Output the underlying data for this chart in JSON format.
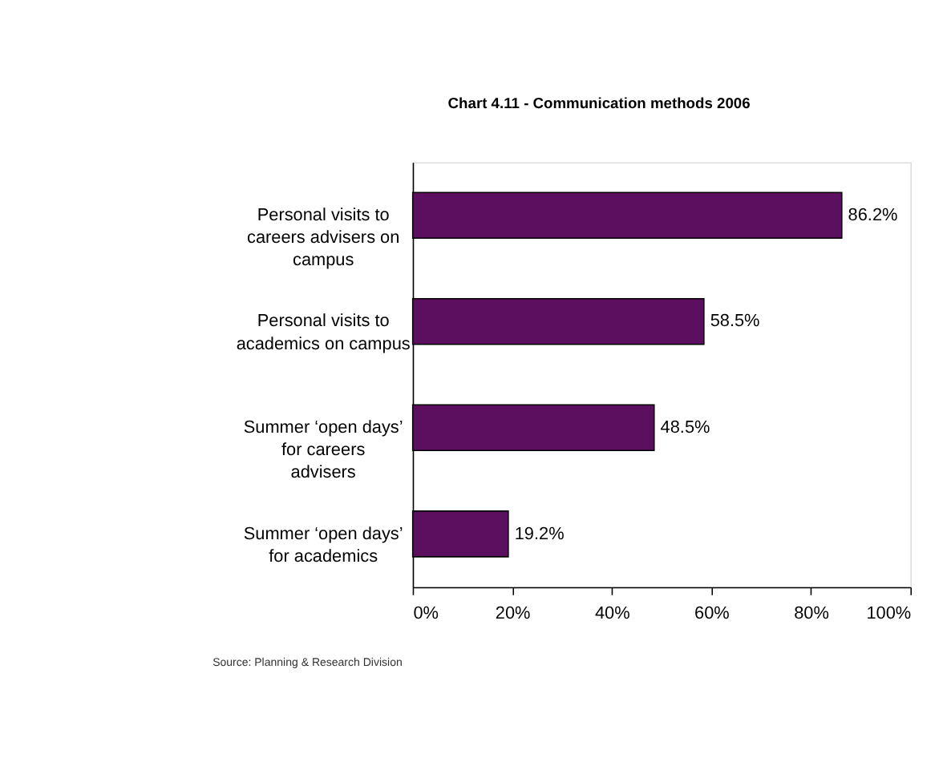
{
  "chart_data": {
    "type": "bar",
    "orientation": "horizontal",
    "title": "Chart 4.11 - Communication methods 2006",
    "categories": [
      "Personal visits to careers advisers on campus",
      "Personal visits to academics on campus",
      "Summer ‘open days’ for careers advisers",
      "Summer ‘open days’ for academics"
    ],
    "values": [
      86.2,
      58.5,
      48.5,
      19.2
    ],
    "value_labels": [
      "86.2%",
      "58.5%",
      "48.5%",
      "19.2%"
    ],
    "color": "#5c0f5e",
    "xlim": [
      0,
      100
    ],
    "xticks": [
      {
        "value": 0,
        "label": "0%"
      },
      {
        "value": 20,
        "label": "20%"
      },
      {
        "value": 40,
        "label": "40%"
      },
      {
        "value": 60,
        "label": "60%"
      },
      {
        "value": 80,
        "label": "80%"
      },
      {
        "value": 100,
        "label": "100%"
      }
    ],
    "grid": false,
    "annotations": [
      "Source: Planning & Research Division"
    ]
  }
}
